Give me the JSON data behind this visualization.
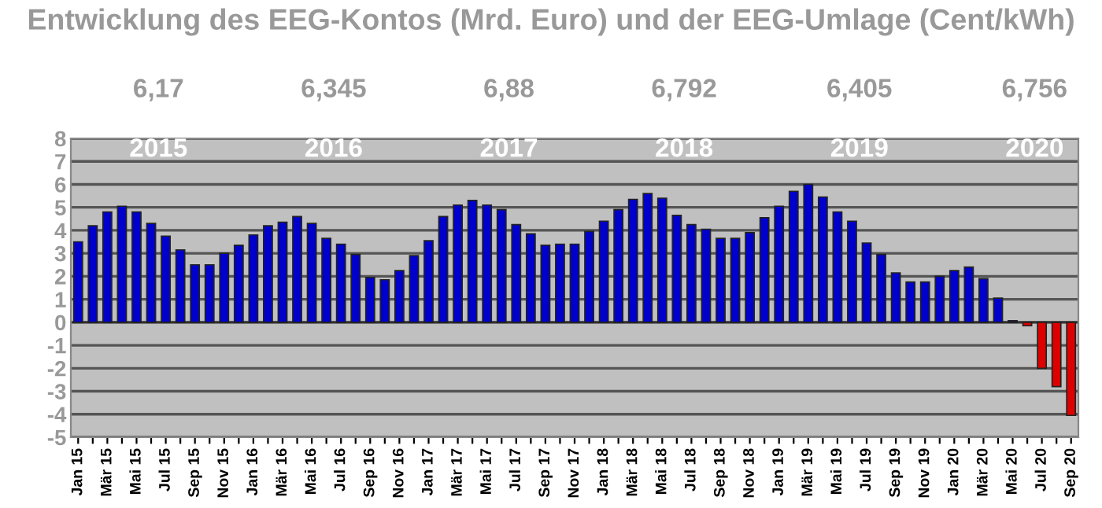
{
  "chart_data": {
    "type": "bar",
    "title": "Entwicklung des EEG-Kontos (Mrd. Euro) und der EEG-Umlage (Cent/kWh)",
    "categories": [
      "Jan 15",
      null,
      "Mär 15",
      null,
      "Mai 15",
      null,
      "Jul 15",
      null,
      "Sep 15",
      null,
      "Nov 15",
      null,
      "Jan 16",
      null,
      "Mär 16",
      null,
      "Mai 16",
      null,
      "Jul 16",
      null,
      "Sep 16",
      null,
      "Nov 16",
      null,
      "Jan 17",
      null,
      "Mär 17",
      null,
      "Mai 17",
      null,
      "Jul 17",
      null,
      "Sep 17",
      null,
      "Nov 17",
      null,
      "Jan 18",
      null,
      "Mär 18",
      null,
      "Mai 18",
      null,
      "Jul 18",
      null,
      "Sep 18",
      null,
      "Nov 18",
      null,
      "Jan 19",
      null,
      "Mär 19",
      null,
      "Mai 19",
      null,
      "Jul 19",
      null,
      "Sep 19",
      null,
      "Nov 19",
      null,
      "Jan 20",
      null,
      "Mär 20",
      null,
      "Mai 20",
      null,
      "Jul 20",
      null,
      "Sep 20"
    ],
    "values": [
      3.5,
      4.2,
      4.8,
      5.05,
      4.8,
      4.3,
      3.75,
      3.15,
      2.5,
      2.5,
      3.0,
      3.35,
      3.8,
      4.2,
      4.35,
      4.6,
      4.3,
      3.65,
      3.4,
      2.95,
      1.95,
      1.85,
      2.25,
      2.9,
      3.55,
      4.6,
      5.1,
      5.3,
      5.1,
      4.9,
      4.25,
      3.85,
      3.35,
      3.4,
      3.4,
      3.95,
      4.4,
      4.9,
      5.35,
      5.6,
      5.4,
      4.65,
      4.25,
      4.05,
      3.65,
      3.65,
      3.9,
      4.55,
      5.05,
      5.7,
      6.0,
      5.45,
      4.8,
      4.4,
      3.45,
      2.95,
      2.15,
      1.75,
      1.75,
      2.0,
      2.25,
      2.4,
      1.9,
      1.05,
      0.07,
      -0.15,
      -2.0,
      -2.8,
      -4.05
    ],
    "colors": [
      "#0000cc",
      "#0000cc",
      "#0000cc",
      "#0000cc",
      "#0000cc",
      "#0000cc",
      "#0000cc",
      "#0000cc",
      "#0000cc",
      "#0000cc",
      "#0000cc",
      "#0000cc",
      "#0000cc",
      "#0000cc",
      "#0000cc",
      "#0000cc",
      "#0000cc",
      "#0000cc",
      "#0000cc",
      "#0000cc",
      "#0000cc",
      "#0000cc",
      "#0000cc",
      "#0000cc",
      "#0000cc",
      "#0000cc",
      "#0000cc",
      "#0000cc",
      "#0000cc",
      "#0000cc",
      "#0000cc",
      "#0000cc",
      "#0000cc",
      "#0000cc",
      "#0000cc",
      "#0000cc",
      "#0000cc",
      "#0000cc",
      "#0000cc",
      "#0000cc",
      "#0000cc",
      "#0000cc",
      "#0000cc",
      "#0000cc",
      "#0000cc",
      "#0000cc",
      "#0000cc",
      "#0000cc",
      "#0000cc",
      "#0000cc",
      "#0000cc",
      "#0000cc",
      "#0000cc",
      "#0000cc",
      "#0000cc",
      "#0000cc",
      "#0000cc",
      "#0000cc",
      "#0000cc",
      "#0000cc",
      "#0000cc",
      "#0000cc",
      "#0000cc",
      "#0000cc",
      "#0000cc",
      "#dd0000",
      "#dd0000",
      "#dd0000",
      "#dd0000"
    ],
    "ylim": [
      -5,
      8
    ],
    "yticks": [
      -5,
      -4,
      -3,
      -2,
      -1,
      0,
      1,
      2,
      3,
      4,
      5,
      6,
      7,
      8
    ],
    "grid": "y",
    "annotations": [
      "2015",
      "2016",
      "2017",
      "2018",
      "2019",
      "2020",
      "6,17",
      "6,345",
      "6,88",
      "6,792",
      "6,405",
      "6,756"
    ]
  }
}
